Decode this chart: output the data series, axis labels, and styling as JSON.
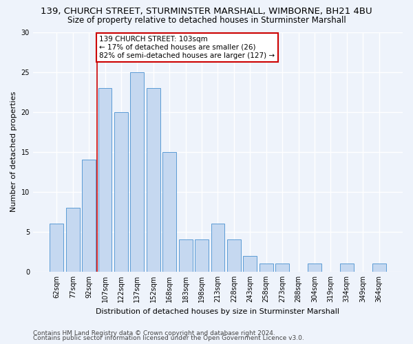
{
  "title": "139, CHURCH STREET, STURMINSTER MARSHALL, WIMBORNE, BH21 4BU",
  "subtitle": "Size of property relative to detached houses in Sturminster Marshall",
  "xlabel": "Distribution of detached houses by size in Sturminster Marshall",
  "ylabel": "Number of detached properties",
  "footnote1": "Contains HM Land Registry data © Crown copyright and database right 2024.",
  "footnote2": "Contains public sector information licensed under the Open Government Licence v3.0.",
  "categories": [
    "62sqm",
    "77sqm",
    "92sqm",
    "107sqm",
    "122sqm",
    "137sqm",
    "152sqm",
    "168sqm",
    "183sqm",
    "198sqm",
    "213sqm",
    "228sqm",
    "243sqm",
    "258sqm",
    "273sqm",
    "288sqm",
    "304sqm",
    "319sqm",
    "334sqm",
    "349sqm",
    "364sqm"
  ],
  "values": [
    6,
    8,
    14,
    23,
    20,
    25,
    23,
    15,
    4,
    4,
    6,
    4,
    2,
    1,
    1,
    0,
    1,
    0,
    1,
    0,
    1
  ],
  "bar_color": "#c5d8f0",
  "bar_edge_color": "#5b9bd5",
  "background_color": "#eef3fb",
  "grid_color": "#ffffff",
  "annotation_box_color": "#ffffff",
  "annotation_box_edge_color": "#cc0000",
  "annotation_text": "139 CHURCH STREET: 103sqm\n← 17% of detached houses are smaller (26)\n82% of semi-detached houses are larger (127) →",
  "red_line_x": 2.5,
  "ylim": [
    0,
    30
  ],
  "yticks": [
    0,
    5,
    10,
    15,
    20,
    25,
    30
  ],
  "annotation_fontsize": 7.5,
  "title_fontsize": 9.5,
  "subtitle_fontsize": 8.5,
  "ylabel_fontsize": 8,
  "xlabel_fontsize": 8,
  "tick_fontsize": 7,
  "footnote_fontsize": 6.5
}
